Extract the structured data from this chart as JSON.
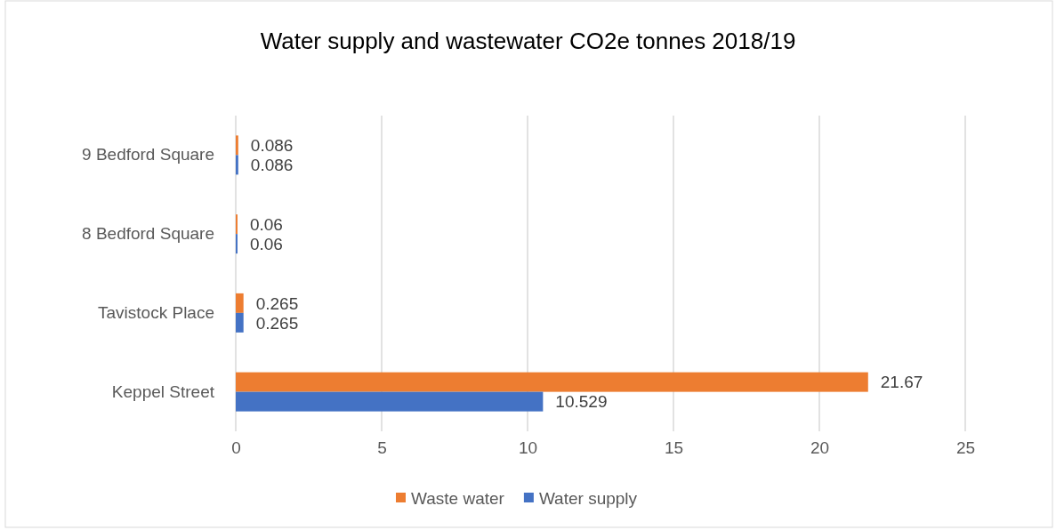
{
  "chart_data": {
    "type": "bar",
    "orientation": "horizontal",
    "title": "Water supply and wastewater CO2e tonnes 2018/19",
    "categories": [
      "9 Bedford Square",
      "8 Bedford Square",
      "Tavistock Place",
      "Keppel Street"
    ],
    "series": [
      {
        "name": "Waste water",
        "color": "#ed7d31",
        "values": [
          0.086,
          0.06,
          0.265,
          21.67
        ]
      },
      {
        "name": "Water supply",
        "color": "#4472c4",
        "values": [
          0.086,
          0.06,
          0.265,
          10.529
        ]
      }
    ],
    "xlim": [
      0,
      25
    ],
    "xticks": [
      0,
      5,
      10,
      15,
      20,
      25
    ],
    "grid": "x",
    "legend": "bottom",
    "data_labels": true
  }
}
